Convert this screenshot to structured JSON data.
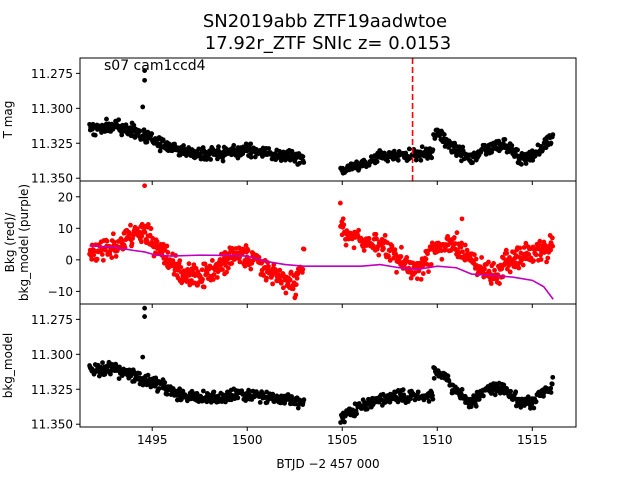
{
  "chart_data": {
    "type": "scatter",
    "title_line1": "SN2019abb  ZTF19aadwtoe",
    "title_line2": "17.92r_ZTF SNIc z= 0.0153",
    "xlabel": "BTJD −2 457 000",
    "xlim": [
      1491.2,
      1517.3
    ],
    "x_ticks": [
      1495,
      1500,
      1505,
      1510,
      1515
    ],
    "x_tick_labels": [
      "1495",
      "1500",
      "1505",
      "1510",
      "1515"
    ],
    "gap": [
      1503.1,
      1504.9
    ],
    "colors": {
      "tmag": "#000000",
      "bkg": "#ff0000",
      "bkg_model": "#c000c0",
      "vline": "#ff0000"
    },
    "panels": [
      {
        "id": "tmag",
        "ylabel": "T mag",
        "ylim": [
          11.352,
          11.264
        ],
        "y_ticks": [
          11.275,
          11.3,
          11.325,
          11.35
        ],
        "y_tick_labels": [
          "11.275",
          "11.300",
          "11.325",
          "11.350"
        ],
        "annotation": "s07 cam1ccd4",
        "vline_x": 1508.7,
        "series": [
          {
            "kind": "points",
            "color": "tmag",
            "radius": 2.4,
            "noise": 0.0022,
            "seed": 11,
            "segments": [
              {
                "x": [
                  1491.7,
                  1493.0,
                  1494.0,
                  1495.0,
                  1496.5,
                  1497.5,
                  1499.0,
                  1500.0,
                  1501.5,
                  1503.0
                ],
                "y": [
                  11.315,
                  11.313,
                  11.316,
                  11.322,
                  11.33,
                  11.333,
                  11.332,
                  11.33,
                  11.333,
                  11.336
                ],
                "n": 380
              },
              {
                "x": [
                  1504.9,
                  1506.0,
                  1507.0,
                  1508.0,
                  1509.0,
                  1509.8
                ],
                "y": [
                  11.344,
                  11.34,
                  11.335,
                  11.333,
                  11.333,
                  11.332
                ],
                "n": 140
              },
              {
                "x": [
                  1509.8,
                  1510.3,
                  1511.0,
                  1511.8,
                  1512.5,
                  1513.5,
                  1514.5,
                  1515.2,
                  1516.1
                ],
                "y": [
                  11.318,
                  11.32,
                  11.33,
                  11.336,
                  11.328,
                  11.326,
                  11.336,
                  11.333,
                  11.32
                ],
                "n": 210
              }
            ],
            "outliers": [
              {
                "x": 1494.6,
                "y": 11.273
              },
              {
                "x": 1494.6,
                "y": 11.28
              },
              {
                "x": 1494.5,
                "y": 11.299
              }
            ]
          }
        ]
      },
      {
        "id": "bkg",
        "ylabel": "Bkg (red)/\nbkg_model (purple)",
        "ylim": [
          -14,
          25
        ],
        "y_ticks": [
          -10,
          0,
          10,
          20
        ],
        "y_tick_labels": [
          "−10",
          "0",
          "10",
          "20"
        ],
        "series": [
          {
            "kind": "points",
            "color": "bkg",
            "radius": 2.4,
            "noise": 1.8,
            "seed": 23,
            "segments": [
              {
                "x": [
                  1491.7,
                  1492.5,
                  1493.5,
                  1494.5,
                  1495.5,
                  1496.5,
                  1497.5,
                  1498.5,
                  1499.5,
                  1500.5,
                  1501.0,
                  1501.8,
                  1502.5,
                  1503.0
                ],
                "y": [
                  2,
                  3,
                  6,
                  10,
                  2,
                  -4,
                  -6,
                  -2,
                  2,
                  0,
                  -2,
                  -6,
                  -8,
                  0
                ],
                "n": 420
              },
              {
                "x": [
                  1504.9,
                  1505.5,
                  1506.5,
                  1507.5,
                  1508.5,
                  1509.0,
                  1510.0,
                  1511.0,
                  1512.0,
                  1513.0,
                  1514.0,
                  1515.0,
                  1516.1
                ],
                "y": [
                  10,
                  7,
                  6,
                  3,
                  -3,
                  -3,
                  4,
                  5,
                  -1,
                  -5,
                  1,
                  2,
                  4
                ],
                "n": 380
              }
            ],
            "outliers": [
              {
                "x": 1494.6,
                "y": 23.5
              },
              {
                "x": 1504.9,
                "y": 18
              },
              {
                "x": 1511.3,
                "y": 13
              }
            ]
          },
          {
            "kind": "line",
            "color": "bkg_model",
            "x": [
              1491.7,
              1493.0,
              1494.0,
              1494.6,
              1495.2,
              1496.0,
              1497.5,
              1499.0,
              1500.0,
              1501.0,
              1502.0,
              1503.0,
              1503.5,
              1505.0,
              1506.0,
              1507.0,
              1508.0,
              1509.0,
              1510.0,
              1511.0,
              1511.8,
              1513.0,
              1514.0,
              1515.0,
              1515.6,
              1516.1
            ],
            "y": [
              4.5,
              4.0,
              3.0,
              2.5,
              1.5,
              1.2,
              1.5,
              1.4,
              1.2,
              -0.5,
              -1.5,
              -2.0,
              -2.0,
              -2.0,
              -2.0,
              -1.5,
              -2.5,
              -3.0,
              -2.0,
              -2.5,
              -4.5,
              -5.0,
              -5.5,
              -6.5,
              -8.5,
              -12.5
            ]
          }
        ]
      },
      {
        "id": "bkgmodel",
        "ylabel": "bkg_model",
        "ylim": [
          11.352,
          11.264
        ],
        "y_ticks": [
          11.275,
          11.3,
          11.325,
          11.35
        ],
        "y_tick_labels": [
          "11.275",
          "11.300",
          "11.325",
          "11.350"
        ],
        "series": [
          {
            "kind": "points",
            "color": "tmag",
            "radius": 2.4,
            "noise": 0.0022,
            "seed": 37,
            "segments": [
              {
                "x": [
                  1491.7,
                  1493.0,
                  1494.0,
                  1495.0,
                  1496.5,
                  1497.5,
                  1499.0,
                  1500.0,
                  1501.5,
                  1503.0
                ],
                "y": [
                  11.311,
                  11.31,
                  11.315,
                  11.32,
                  11.328,
                  11.331,
                  11.33,
                  11.329,
                  11.332,
                  11.336
                ],
                "n": 380
              },
              {
                "x": [
                  1504.9,
                  1506.0,
                  1507.0,
                  1508.0,
                  1509.0,
                  1509.8
                ],
                "y": [
                  11.345,
                  11.337,
                  11.332,
                  11.33,
                  11.331,
                  11.33
                ],
                "n": 140
              },
              {
                "x": [
                  1509.8,
                  1510.3,
                  1511.0,
                  1511.8,
                  1512.5,
                  1513.5,
                  1514.5,
                  1515.2,
                  1516.1
                ],
                "y": [
                  11.312,
                  11.315,
                  11.327,
                  11.335,
                  11.326,
                  11.324,
                  11.336,
                  11.332,
                  11.322
                ],
                "n": 210
              }
            ],
            "outliers": [
              {
                "x": 1494.6,
                "y": 11.267
              },
              {
                "x": 1494.6,
                "y": 11.273
              },
              {
                "x": 1494.5,
                "y": 11.302
              }
            ]
          }
        ]
      }
    ]
  }
}
